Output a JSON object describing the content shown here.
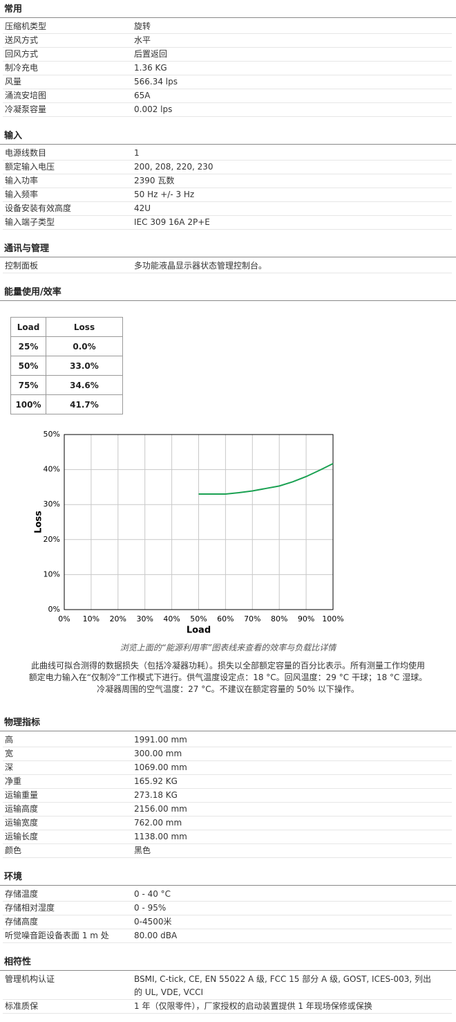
{
  "sections_top": [
    {
      "title": "常用",
      "rows": [
        [
          "压缩机类型",
          "旋转"
        ],
        [
          "送风方式",
          "水平"
        ],
        [
          "回风方式",
          "后置返回"
        ],
        [
          "制冷充电",
          "1.36 KG"
        ],
        [
          "风量",
          "566.34 lps"
        ],
        [
          "涌流安培图",
          "65A"
        ],
        [
          "冷凝泵容量",
          "0.002 lps"
        ]
      ]
    },
    {
      "title": "输入",
      "rows": [
        [
          "电源线数目",
          "1"
        ],
        [
          "额定输入电压",
          "200, 208, 220, 230"
        ],
        [
          "输入功率",
          "2390 瓦数"
        ],
        [
          "输入频率",
          "50 Hz +/- 3 Hz"
        ],
        [
          "设备安装有效高度",
          "42U"
        ],
        [
          "输入端子类型",
          "IEC 309 16A 2P+E"
        ]
      ]
    },
    {
      "title": "通讯与管理",
      "rows": [
        [
          "控制面板",
          "多功能液晶显示器状态管理控制台。"
        ]
      ]
    }
  ],
  "energy": {
    "title": "能量使用/效率",
    "table": {
      "header": [
        "Load",
        "Loss"
      ],
      "rows": [
        [
          "25%",
          "0.0%"
        ],
        [
          "50%",
          "33.0%"
        ],
        [
          "75%",
          "34.6%"
        ],
        [
          "100%",
          "41.7%"
        ]
      ]
    },
    "caption": "浏览上面的“能源利用率”图表线来查看的效率与负载比详情",
    "note": "此曲线可拟合测得的数据损失（包括冷凝器功耗）。损失以全部额定容量的百分比表示。所有测量工作均使用额定电力输入在“仅制冷”工作模式下进行。供气温度设定点：18 °C。回风温度：29 °C 干球；18 °C 湿球。冷凝器周围的空气温度：27 °C。不建议在额定容量的 50% 以下操作。"
  },
  "chart_data": {
    "type": "line",
    "x_label": "Load",
    "y_label": "Loss",
    "x": [
      50,
      55,
      60,
      65,
      70,
      75,
      80,
      85,
      90,
      95,
      100
    ],
    "series": [
      {
        "name": "Loss",
        "color": "#1aa152",
        "values": [
          33.0,
          33.0,
          33.0,
          33.4,
          33.9,
          34.6,
          35.3,
          36.5,
          38.0,
          39.8,
          41.7
        ]
      }
    ],
    "xlim": [
      0,
      100
    ],
    "xticks": [
      {
        "value": 0,
        "label": "0%"
      },
      {
        "value": 10,
        "label": "10%"
      },
      {
        "value": 20,
        "label": "20%"
      },
      {
        "value": 30,
        "label": "30%"
      },
      {
        "value": 40,
        "label": "40%"
      },
      {
        "value": 50,
        "label": "50%"
      },
      {
        "value": 60,
        "label": "60%"
      },
      {
        "value": 70,
        "label": "70%"
      },
      {
        "value": 80,
        "label": "80%"
      },
      {
        "value": 90,
        "label": "90%"
      },
      {
        "value": 100,
        "label": "100%"
      }
    ],
    "ylim": [
      0,
      50
    ],
    "yticks": [
      {
        "value": 0,
        "label": "0%"
      },
      {
        "value": 10,
        "label": "10%"
      },
      {
        "value": 20,
        "label": "20%"
      },
      {
        "value": 30,
        "label": "30%"
      },
      {
        "value": 40,
        "label": "40%"
      },
      {
        "value": 50,
        "label": "50%"
      }
    ],
    "grid": true
  },
  "sections_bottom": [
    {
      "title": "物理指标",
      "rows": [
        [
          "高",
          "1991.00 mm"
        ],
        [
          "宽",
          "300.00 mm"
        ],
        [
          "深",
          "1069.00 mm"
        ],
        [
          "净重",
          "165.92 KG"
        ],
        [
          "运输重量",
          "273.18 KG"
        ],
        [
          "运输高度",
          "2156.00 mm"
        ],
        [
          "运输宽度",
          "762.00 mm"
        ],
        [
          "运输长度",
          "1138.00 mm"
        ],
        [
          "颜色",
          "黑色"
        ]
      ]
    },
    {
      "title": "环境",
      "rows": [
        [
          "存储温度",
          "0 - 40 °C"
        ],
        [
          "存储相对湿度",
          "0 - 95%"
        ],
        [
          "存储高度",
          "0-4500米"
        ],
        [
          "听觉噪音距设备表面 1 m 处",
          "80.00 dBA"
        ]
      ]
    },
    {
      "title": "相符性",
      "rows": [
        [
          "管理机构认证",
          "BSMI, C-tick, CE, EN 55022 A 级, FCC 15 部分 A 级, GOST, ICES-003, 列出的 UL, VDE, VCCI"
        ],
        [
          "标准质保",
          "1 年（仅限零件），厂家授权的启动装置提供 1 年现场保修或保换"
        ]
      ]
    }
  ]
}
